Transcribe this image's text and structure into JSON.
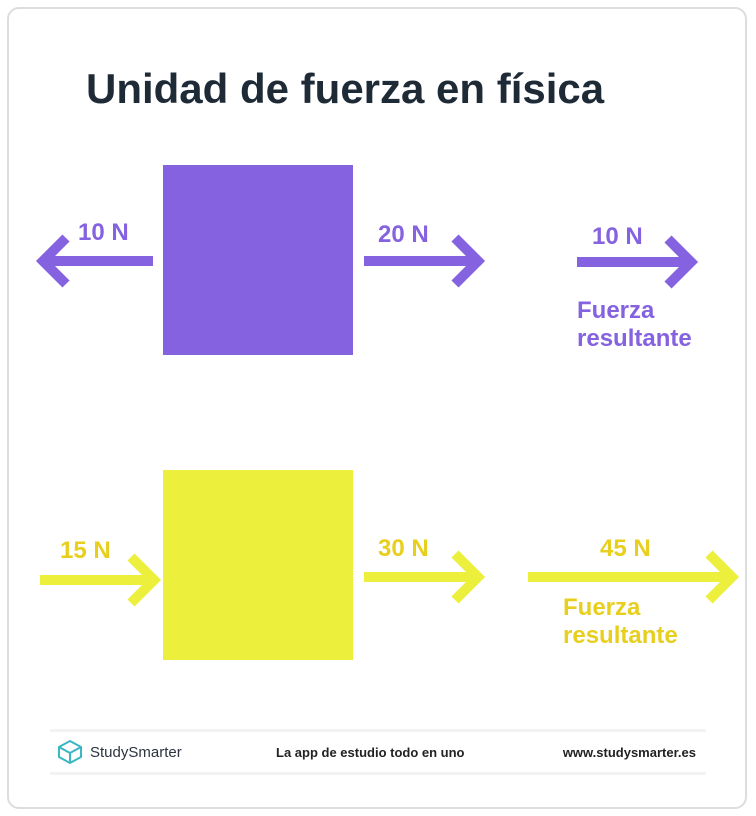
{
  "title": "Unidad de fuerza en física",
  "colors": {
    "purple": "#8462e0",
    "yellow_fill": "#ecef3c",
    "yellow_text": "#e8cf1d",
    "title": "#1f2a37"
  },
  "scenario_1": {
    "left_force": "10 N",
    "right_force": "20 N",
    "resultant_force": "10 N",
    "resultant_label_1": "Fuerza",
    "resultant_label_2": "resultante"
  },
  "scenario_2": {
    "left_force": "15 N",
    "right_force": "30 N",
    "resultant_force": "45 N",
    "resultant_label_1": "Fuerza",
    "resultant_label_2": "resultante"
  },
  "footer": {
    "brand": "StudySmarter",
    "tagline": "La app de estudio todo en uno",
    "url": "www.studysmarter.es",
    "logo_icon": "box-logo-icon"
  }
}
